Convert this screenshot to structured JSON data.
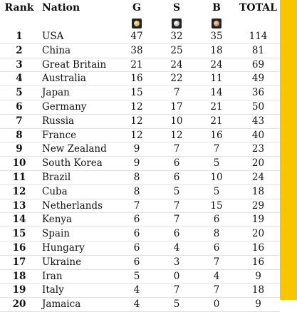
{
  "header": {
    "rank": "Rank",
    "nation": "Nation",
    "gold": "G",
    "silver": "S",
    "bronze": "B",
    "total": "TOTAL"
  },
  "icons": {
    "gold": "gold-medal-icon",
    "silver": "silver-medal-icon",
    "bronze": "bronze-medal-icon"
  },
  "colors": {
    "side_bar": "#f7c600"
  },
  "rows": [
    {
      "rank": "1",
      "nation": "USA",
      "g": "47",
      "s": "32",
      "b": "35",
      "total": "114"
    },
    {
      "rank": "2",
      "nation": "China",
      "g": "38",
      "s": "25",
      "b": "18",
      "total": "81"
    },
    {
      "rank": "3",
      "nation": "Great Britain",
      "g": "21",
      "s": "24",
      "b": "24",
      "total": "69"
    },
    {
      "rank": "4",
      "nation": "Australia",
      "g": "16",
      "s": "22",
      "b": "11",
      "total": "49"
    },
    {
      "rank": "5",
      "nation": "Japan",
      "g": "15",
      "s": "7",
      "b": "14",
      "total": "36"
    },
    {
      "rank": "6",
      "nation": "Germany",
      "g": "12",
      "s": "17",
      "b": "21",
      "total": "50"
    },
    {
      "rank": "7",
      "nation": "Russia",
      "g": "12",
      "s": "10",
      "b": "21",
      "total": "43"
    },
    {
      "rank": "8",
      "nation": "France",
      "g": "12",
      "s": "12",
      "b": "16",
      "total": "40"
    },
    {
      "rank": "9",
      "nation": "New Zealand",
      "g": "9",
      "s": "7",
      "b": "7",
      "total": "23"
    },
    {
      "rank": "10",
      "nation": "South Korea",
      "g": "9",
      "s": "6",
      "b": "5",
      "total": "20"
    },
    {
      "rank": "11",
      "nation": "Brazil",
      "g": "8",
      "s": "6",
      "b": "10",
      "total": "24"
    },
    {
      "rank": "12",
      "nation": "Cuba",
      "g": "8",
      "s": "5",
      "b": "5",
      "total": "18"
    },
    {
      "rank": "13",
      "nation": "Netherlands",
      "g": "7",
      "s": "7",
      "b": "15",
      "total": "29"
    },
    {
      "rank": "14",
      "nation": "Kenya",
      "g": "6",
      "s": "7",
      "b": "6",
      "total": "19"
    },
    {
      "rank": "15",
      "nation": "Spain",
      "g": "6",
      "s": "6",
      "b": "8",
      "total": "20"
    },
    {
      "rank": "16",
      "nation": "Hungary",
      "g": "6",
      "s": "4",
      "b": "6",
      "total": "16"
    },
    {
      "rank": "17",
      "nation": "Ukraine",
      "g": "6",
      "s": "3",
      "b": "7",
      "total": "16"
    },
    {
      "rank": "18",
      "nation": "Iran",
      "g": "5",
      "s": "0",
      "b": "4",
      "total": "9"
    },
    {
      "rank": "19",
      "nation": "Italy",
      "g": "4",
      "s": "7",
      "b": "7",
      "total": "18"
    },
    {
      "rank": "20",
      "nation": "Jamaica",
      "g": "4",
      "s": "5",
      "b": "0",
      "total": "9"
    }
  ]
}
